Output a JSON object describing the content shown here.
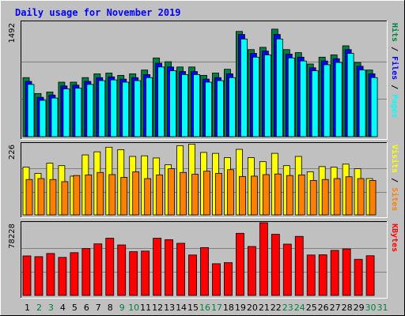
{
  "chart_data": {
    "type": "bar",
    "title": "Daily usage for November 2019",
    "categories": [
      "1",
      "2",
      "3",
      "4",
      "5",
      "6",
      "7",
      "8",
      "9",
      "10",
      "11",
      "12",
      "13",
      "14",
      "15",
      "16",
      "17",
      "18",
      "19",
      "20",
      "21",
      "22",
      "23",
      "24",
      "25",
      "26",
      "27",
      "28",
      "29",
      "30",
      "31"
    ],
    "weekend_days": [
      "2",
      "3",
      "9",
      "10",
      "16",
      "17",
      "23",
      "24",
      "30",
      "31"
    ],
    "panels": [
      {
        "ylabel_parts": [
          "Pages",
          "Files",
          "Hits"
        ],
        "max_label": "1492",
        "ylim": [
          0,
          1492
        ],
        "series": [
          {
            "name": "Hits",
            "values": [
              780,
              570,
              590,
              720,
              720,
              780,
              830,
              840,
              810,
              830,
              880,
              1040,
              990,
              920,
              920,
              810,
              840,
              890,
              1390,
              1150,
              1180,
              1420,
              1150,
              1110,
              960,
              1050,
              1080,
              1200,
              980,
              880,
              null
            ]
          },
          {
            "name": "Files",
            "values": [
              730,
              520,
              550,
              670,
              680,
              730,
              780,
              790,
              760,
              780,
              820,
              970,
              920,
              860,
              860,
              760,
              780,
              830,
              1350,
              1100,
              1130,
              1350,
              1090,
              1050,
              910,
              1000,
              1030,
              1150,
              930,
              830,
              null
            ]
          },
          {
            "name": "Pages",
            "values": [
              690,
              480,
              510,
              630,
              640,
              690,
              740,
              750,
              720,
              740,
              780,
              920,
              870,
              820,
              820,
              720,
              740,
              780,
              1290,
              1050,
              1080,
              1290,
              1040,
              1000,
              870,
              950,
              980,
              1100,
              880,
              780,
              null
            ]
          }
        ]
      },
      {
        "ylabel_parts": [
          "Sites",
          "Visits"
        ],
        "max_label": "226",
        "ylim": [
          0,
          226
        ],
        "series": [
          {
            "name": "Visits",
            "values": [
              155,
              135,
              168,
              160,
              126,
              195,
              205,
              220,
              212,
              190,
              192,
              185,
              163,
              225,
              230,
              203,
              200,
              186,
              213,
              186,
              173,
              200,
              160,
              190,
              140,
              157,
              155,
              165,
              150,
              118,
              null
            ]
          },
          {
            "name": "Sites",
            "values": [
              115,
              118,
              115,
              108,
              128,
              130,
              138,
              131,
              122,
              140,
              118,
              130,
              150,
              138,
              132,
              142,
              135,
              147,
              125,
              126,
              131,
              133,
              128,
              130,
              112,
              115,
              118,
              124,
              118,
              112,
              null
            ]
          }
        ]
      },
      {
        "ylabel_parts": [
          "KBytes"
        ],
        "max_label": "78228",
        "ylim": [
          0,
          78228
        ],
        "series": [
          {
            "name": "KBytes",
            "values": [
              43500,
              42700,
              46200,
              41900,
              47100,
              51600,
              56800,
              63000,
              55600,
              48200,
              48800,
              63000,
              61400,
              57400,
              44500,
              52700,
              34900,
              36200,
              68400,
              53900,
              80000,
              67300,
              56500,
              65000,
              44500,
              44800,
              49600,
              51200,
              39800,
              43700,
              null
            ]
          }
        ]
      }
    ]
  },
  "colors": {
    "page_bg": "#C0C0C0",
    "plot_bg": "#C0C0C0",
    "title": "#0000FF",
    "weekday_label": "#000000",
    "weekend_label": "#008040",
    "hits": "#008040",
    "files": "#0000FF",
    "pages": "#00FFFF",
    "visits": "#FFFF00",
    "sites": "#FF8000",
    "kbytes": "#FF0000"
  }
}
